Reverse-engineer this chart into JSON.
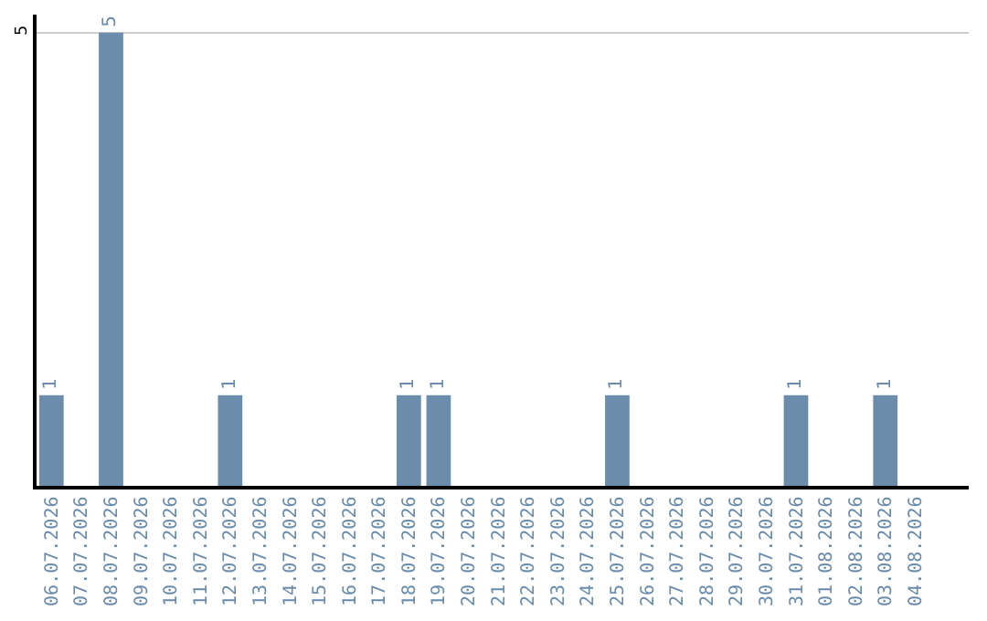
{
  "chart_data": {
    "type": "bar",
    "categories": [
      "06.07.2026",
      "07.07.2026",
      "08.07.2026",
      "09.07.2026",
      "10.07.2026",
      "11.07.2026",
      "12.07.2026",
      "13.07.2026",
      "14.07.2026",
      "15.07.2026",
      "16.07.2026",
      "17.07.2026",
      "18.07.2026",
      "19.07.2026",
      "20.07.2026",
      "21.07.2026",
      "22.07.2026",
      "23.07.2026",
      "24.07.2026",
      "25.07.2026",
      "26.07.2026",
      "27.07.2026",
      "28.07.2026",
      "29.07.2026",
      "30.07.2026",
      "31.07.2026",
      "01.08.2026",
      "02.08.2026",
      "03.08.2026",
      "04.08.2026"
    ],
    "values": [
      1,
      0,
      5,
      0,
      0,
      0,
      1,
      0,
      0,
      0,
      0,
      0,
      1,
      1,
      0,
      0,
      0,
      0,
      0,
      1,
      0,
      0,
      0,
      0,
      0,
      1,
      0,
      0,
      1,
      0
    ],
    "value_labels": [
      "1",
      null,
      "5",
      null,
      null,
      null,
      "1",
      null,
      null,
      null,
      null,
      null,
      "1",
      "1",
      null,
      null,
      null,
      null,
      null,
      "1",
      null,
      null,
      null,
      null,
      null,
      "1",
      null,
      null,
      "1",
      null
    ],
    "color": "#6b8cab",
    "ylim": [
      0,
      5.2
    ],
    "yticks": [
      5
    ],
    "grid": "y",
    "legend": false
  }
}
